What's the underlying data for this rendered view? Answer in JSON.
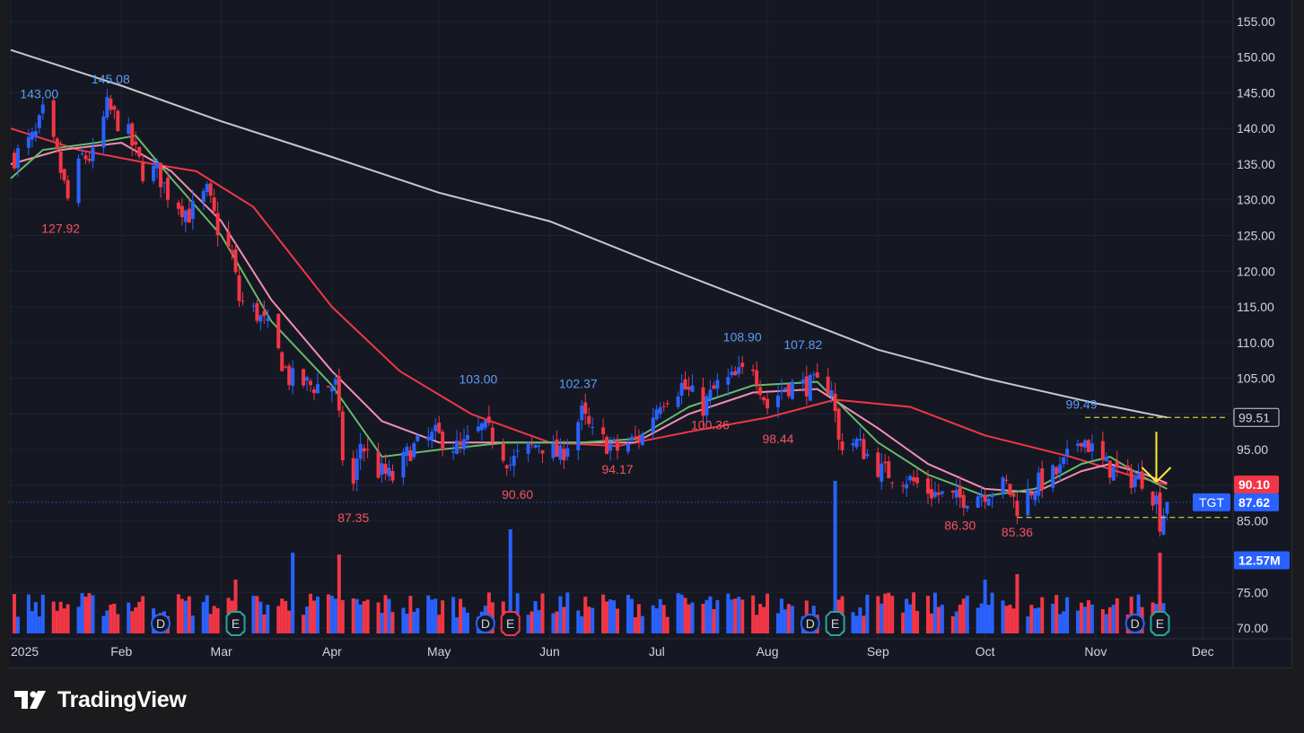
{
  "symbol": "TGT",
  "brand": "TradingView",
  "colors": {
    "up": "#2962ff",
    "down": "#f23645",
    "sma200": "#c8c8cc",
    "ema_slow": "#f23645",
    "ema_mid": "#f48fb1",
    "ema_fast": "#66bb6a",
    "arrow": "#ffeb3b",
    "background": "#151823"
  },
  "chart_data": {
    "type": "candlestick",
    "y_axis": {
      "range": [
        68.5,
        158
      ],
      "ticks": [
        "155.00",
        "150.00",
        "145.00",
        "140.00",
        "135.00",
        "130.00",
        "125.00",
        "120.00",
        "115.00",
        "110.00",
        "105.00",
        "100.00",
        "95.00",
        "90.00",
        "85.00",
        "80.00",
        "75.00",
        "70.00"
      ]
    },
    "x_axis": {
      "start_date": "2025-01-01",
      "end_date": "2025-12-09",
      "ticks": [
        {
          "label": "2025",
          "date": "2025-01-01"
        },
        {
          "label": "Feb",
          "date": "2025-02-01"
        },
        {
          "label": "Mar",
          "date": "2025-03-01"
        },
        {
          "label": "Apr",
          "date": "2025-04-01"
        },
        {
          "label": "May",
          "date": "2025-05-01"
        },
        {
          "label": "Jun",
          "date": "2025-06-01"
        },
        {
          "label": "Jul",
          "date": "2025-07-01"
        },
        {
          "label": "Aug",
          "date": "2025-08-01"
        },
        {
          "label": "Sep",
          "date": "2025-09-01"
        },
        {
          "label": "Oct",
          "date": "2025-10-01"
        },
        {
          "label": "Nov",
          "date": "2025-11-01"
        },
        {
          "label": "Dec",
          "date": "2025-12-01"
        }
      ]
    },
    "price_path": [
      {
        "date": "2025-01-02",
        "close": 136
      },
      {
        "date": "2025-01-08",
        "close": 139
      },
      {
        "date": "2025-01-10",
        "close": 142
      },
      {
        "date": "2025-01-14",
        "close": 136
      },
      {
        "date": "2025-01-17",
        "close": 130
      },
      {
        "date": "2025-01-21",
        "close": 136
      },
      {
        "date": "2025-01-24",
        "close": 136
      },
      {
        "date": "2025-01-28",
        "close": 143
      },
      {
        "date": "2025-02-03",
        "close": 139
      },
      {
        "date": "2025-02-07",
        "close": 134
      },
      {
        "date": "2025-02-11",
        "close": 134
      },
      {
        "date": "2025-02-14",
        "close": 131
      },
      {
        "date": "2025-02-20",
        "close": 128
      },
      {
        "date": "2025-02-25",
        "close": 131
      },
      {
        "date": "2025-02-28",
        "close": 126
      },
      {
        "date": "2025-03-04",
        "close": 122
      },
      {
        "date": "2025-03-06",
        "close": 116
      },
      {
        "date": "2025-03-11",
        "close": 114
      },
      {
        "date": "2025-03-14",
        "close": 112
      },
      {
        "date": "2025-03-20",
        "close": 105
      },
      {
        "date": "2025-03-26",
        "close": 104
      },
      {
        "date": "2025-03-31",
        "close": 104
      },
      {
        "date": "2025-04-02",
        "close": 104
      },
      {
        "date": "2025-04-04",
        "close": 94
      },
      {
        "date": "2025-04-07",
        "close": 90
      },
      {
        "date": "2025-04-09",
        "close": 96
      },
      {
        "date": "2025-04-14",
        "close": 92
      },
      {
        "date": "2025-04-18",
        "close": 91
      },
      {
        "date": "2025-04-23",
        "close": 95
      },
      {
        "date": "2025-04-30",
        "close": 97
      },
      {
        "date": "2025-05-07",
        "close": 95
      },
      {
        "date": "2025-05-13",
        "close": 98
      },
      {
        "date": "2025-05-16",
        "close": 97
      },
      {
        "date": "2025-05-21",
        "close": 93
      },
      {
        "date": "2025-05-23",
        "close": 94
      },
      {
        "date": "2025-05-29",
        "close": 96
      },
      {
        "date": "2025-06-04",
        "close": 94
      },
      {
        "date": "2025-06-10",
        "close": 100
      },
      {
        "date": "2025-06-13",
        "close": 97
      },
      {
        "date": "2025-06-20",
        "close": 95
      },
      {
        "date": "2025-06-27",
        "close": 97
      },
      {
        "date": "2025-07-02",
        "close": 102
      },
      {
        "date": "2025-07-08",
        "close": 104
      },
      {
        "date": "2025-07-14",
        "close": 101
      },
      {
        "date": "2025-07-18",
        "close": 104
      },
      {
        "date": "2025-07-23",
        "close": 105
      },
      {
        "date": "2025-07-28",
        "close": 107
      },
      {
        "date": "2025-08-01",
        "close": 101
      },
      {
        "date": "2025-08-06",
        "close": 104
      },
      {
        "date": "2025-08-12",
        "close": 104
      },
      {
        "date": "2025-08-19",
        "close": 104
      },
      {
        "date": "2025-08-21",
        "close": 96
      },
      {
        "date": "2025-08-26",
        "close": 96
      },
      {
        "date": "2025-09-02",
        "close": 92
      },
      {
        "date": "2025-09-09",
        "close": 91
      },
      {
        "date": "2025-09-16",
        "close": 89
      },
      {
        "date": "2025-09-23",
        "close": 88
      },
      {
        "date": "2025-09-30",
        "close": 89
      },
      {
        "date": "2025-10-07",
        "close": 90
      },
      {
        "date": "2025-10-10",
        "close": 87
      },
      {
        "date": "2025-10-15",
        "close": 90
      },
      {
        "date": "2025-10-22",
        "close": 92
      },
      {
        "date": "2025-10-28",
        "close": 97
      },
      {
        "date": "2025-11-03",
        "close": 93
      },
      {
        "date": "2025-11-10",
        "close": 91
      },
      {
        "date": "2025-11-14",
        "close": 91
      },
      {
        "date": "2025-11-18",
        "close": 88
      },
      {
        "date": "2025-11-19",
        "close": 85
      },
      {
        "date": "2025-11-21",
        "close": 87.62
      }
    ],
    "moving_averages": [
      {
        "id": "sma200",
        "color": "#c8c8cc",
        "points": [
          {
            "date": "2025-01-01",
            "value": 151
          },
          {
            "date": "2025-02-01",
            "value": 146
          },
          {
            "date": "2025-03-01",
            "value": 141
          },
          {
            "date": "2025-04-01",
            "value": 136
          },
          {
            "date": "2025-05-01",
            "value": 131
          },
          {
            "date": "2025-06-01",
            "value": 127
          },
          {
            "date": "2025-07-01",
            "value": 121
          },
          {
            "date": "2025-08-01",
            "value": 115
          },
          {
            "date": "2025-09-01",
            "value": 109
          },
          {
            "date": "2025-10-01",
            "value": 105
          },
          {
            "date": "2025-11-01",
            "value": 101.5
          },
          {
            "date": "2025-11-21",
            "value": 99.51
          }
        ]
      },
      {
        "id": "ema-slow",
        "color": "#f23645",
        "points": [
          {
            "date": "2025-01-01",
            "value": 140
          },
          {
            "date": "2025-01-20",
            "value": 137
          },
          {
            "date": "2025-02-10",
            "value": 135
          },
          {
            "date": "2025-02-22",
            "value": 134
          },
          {
            "date": "2025-03-10",
            "value": 129
          },
          {
            "date": "2025-04-01",
            "value": 115
          },
          {
            "date": "2025-04-20",
            "value": 106
          },
          {
            "date": "2025-05-10",
            "value": 100
          },
          {
            "date": "2025-06-01",
            "value": 96
          },
          {
            "date": "2025-06-20",
            "value": 95.5
          },
          {
            "date": "2025-07-10",
            "value": 97.5
          },
          {
            "date": "2025-08-01",
            "value": 99.5
          },
          {
            "date": "2025-08-20",
            "value": 102
          },
          {
            "date": "2025-09-10",
            "value": 101
          },
          {
            "date": "2025-10-01",
            "value": 97
          },
          {
            "date": "2025-10-25",
            "value": 94
          },
          {
            "date": "2025-11-10",
            "value": 91.5
          },
          {
            "date": "2025-11-21",
            "value": 90.1
          }
        ]
      },
      {
        "id": "ema-mid",
        "color": "#f48fb1",
        "points": [
          {
            "date": "2025-01-01",
            "value": 135
          },
          {
            "date": "2025-01-15",
            "value": 137
          },
          {
            "date": "2025-02-01",
            "value": 138
          },
          {
            "date": "2025-02-15",
            "value": 134
          },
          {
            "date": "2025-03-01",
            "value": 127
          },
          {
            "date": "2025-03-15",
            "value": 116
          },
          {
            "date": "2025-04-01",
            "value": 106
          },
          {
            "date": "2025-04-15",
            "value": 99
          },
          {
            "date": "2025-05-01",
            "value": 96
          },
          {
            "date": "2025-05-20",
            "value": 96
          },
          {
            "date": "2025-06-10",
            "value": 96
          },
          {
            "date": "2025-06-25",
            "value": 96
          },
          {
            "date": "2025-07-10",
            "value": 100
          },
          {
            "date": "2025-07-28",
            "value": 103
          },
          {
            "date": "2025-08-15",
            "value": 103.5
          },
          {
            "date": "2025-09-01",
            "value": 98
          },
          {
            "date": "2025-09-15",
            "value": 93
          },
          {
            "date": "2025-10-01",
            "value": 89.5
          },
          {
            "date": "2025-10-15",
            "value": 89
          },
          {
            "date": "2025-10-28",
            "value": 92
          },
          {
            "date": "2025-11-05",
            "value": 93
          },
          {
            "date": "2025-11-15",
            "value": 91.5
          },
          {
            "date": "2025-11-21",
            "value": 90.3
          }
        ]
      },
      {
        "id": "ema-fast",
        "color": "#66bb6a",
        "points": [
          {
            "date": "2025-01-01",
            "value": 133
          },
          {
            "date": "2025-01-10",
            "value": 137
          },
          {
            "date": "2025-01-25",
            "value": 138
          },
          {
            "date": "2025-02-05",
            "value": 139
          },
          {
            "date": "2025-02-15",
            "value": 133
          },
          {
            "date": "2025-03-01",
            "value": 125
          },
          {
            "date": "2025-03-15",
            "value": 113
          },
          {
            "date": "2025-04-01",
            "value": 104
          },
          {
            "date": "2025-04-15",
            "value": 94
          },
          {
            "date": "2025-05-01",
            "value": 95
          },
          {
            "date": "2025-05-20",
            "value": 96
          },
          {
            "date": "2025-06-10",
            "value": 96
          },
          {
            "date": "2025-06-25",
            "value": 96.5
          },
          {
            "date": "2025-07-10",
            "value": 101
          },
          {
            "date": "2025-07-28",
            "value": 104
          },
          {
            "date": "2025-08-15",
            "value": 104.5
          },
          {
            "date": "2025-09-01",
            "value": 96
          },
          {
            "date": "2025-09-15",
            "value": 91.5
          },
          {
            "date": "2025-10-01",
            "value": 88.5
          },
          {
            "date": "2025-10-15",
            "value": 89.5
          },
          {
            "date": "2025-10-28",
            "value": 93
          },
          {
            "date": "2025-11-05",
            "value": 94
          },
          {
            "date": "2025-11-15",
            "value": 91
          },
          {
            "date": "2025-11-21",
            "value": 89.5
          }
        ]
      }
    ],
    "annotations": [
      {
        "label": "143.00",
        "date": "2025-01-09",
        "price": 143.0,
        "kind": "high"
      },
      {
        "label": "145.08",
        "date": "2025-01-29",
        "price": 145.08,
        "kind": "high"
      },
      {
        "label": "127.92",
        "date": "2025-01-15",
        "price": 127.92,
        "kind": "low"
      },
      {
        "label": "87.35",
        "date": "2025-04-07",
        "price": 87.35,
        "kind": "low"
      },
      {
        "label": "103.00",
        "date": "2025-05-12",
        "price": 103.0,
        "kind": "high"
      },
      {
        "label": "90.60",
        "date": "2025-05-23",
        "price": 90.6,
        "kind": "low"
      },
      {
        "label": "102.37",
        "date": "2025-06-09",
        "price": 102.37,
        "kind": "high"
      },
      {
        "label": "94.17",
        "date": "2025-06-20",
        "price": 94.17,
        "kind": "low"
      },
      {
        "label": "108.90",
        "date": "2025-07-25",
        "price": 108.9,
        "kind": "high"
      },
      {
        "label": "100.36",
        "date": "2025-07-16",
        "price": 100.36,
        "kind": "low"
      },
      {
        "label": "107.82",
        "date": "2025-08-11",
        "price": 107.82,
        "kind": "high"
      },
      {
        "label": "98.44",
        "date": "2025-08-04",
        "price": 98.44,
        "kind": "low"
      },
      {
        "label": "86.30",
        "date": "2025-09-24",
        "price": 86.3,
        "kind": "low"
      },
      {
        "label": "85.36",
        "date": "2025-10-10",
        "price": 85.36,
        "kind": "low"
      },
      {
        "label": "99.49",
        "date": "2025-10-28",
        "price": 99.49,
        "kind": "high"
      }
    ],
    "horizontal_levels": [
      {
        "price": 99.51,
        "from": "2025-10-29",
        "to": "2025-12-08"
      },
      {
        "price": 85.5,
        "from": "2025-10-10",
        "to": "2025-12-08"
      }
    ],
    "price_badges": [
      {
        "label": "99.51",
        "price": 99.51,
        "style": "outline"
      },
      {
        "label": "90.10",
        "price": 90.1,
        "style": "red"
      },
      {
        "label": "87.62",
        "price": 87.62,
        "style": "blue",
        "tag": "TGT"
      },
      {
        "label": "12.57M",
        "price": 79.5,
        "style": "blue"
      }
    ],
    "last_price": 87.62,
    "volume_last": "12.57M",
    "events": [
      {
        "type": "D",
        "date": "2025-02-12"
      },
      {
        "type": "E",
        "date": "2025-03-05"
      },
      {
        "type": "D",
        "date": "2025-05-14"
      },
      {
        "type": "E",
        "date": "2025-05-21"
      },
      {
        "type": "D",
        "date": "2025-08-13"
      },
      {
        "type": "E",
        "date": "2025-08-20"
      },
      {
        "type": "D",
        "date": "2025-11-12"
      },
      {
        "type": "E",
        "date": "2025-11-19"
      }
    ],
    "volume_spikes": [
      {
        "date": "2025-03-21",
        "value": 4.5,
        "dir": "up"
      },
      {
        "date": "2025-05-21",
        "value": 5.8,
        "dir": "up"
      },
      {
        "date": "2025-08-20",
        "value": 8.5,
        "dir": "up"
      },
      {
        "date": "2025-04-03",
        "value": 4.4,
        "dir": "down"
      },
      {
        "date": "2025-03-05",
        "value": 3.0,
        "dir": "down"
      },
      {
        "date": "2025-10-01",
        "value": 3.0,
        "dir": "up"
      },
      {
        "date": "2025-10-10",
        "value": 3.3,
        "dir": "down"
      },
      {
        "date": "2025-11-19",
        "value": 4.5,
        "dir": "down"
      }
    ]
  }
}
